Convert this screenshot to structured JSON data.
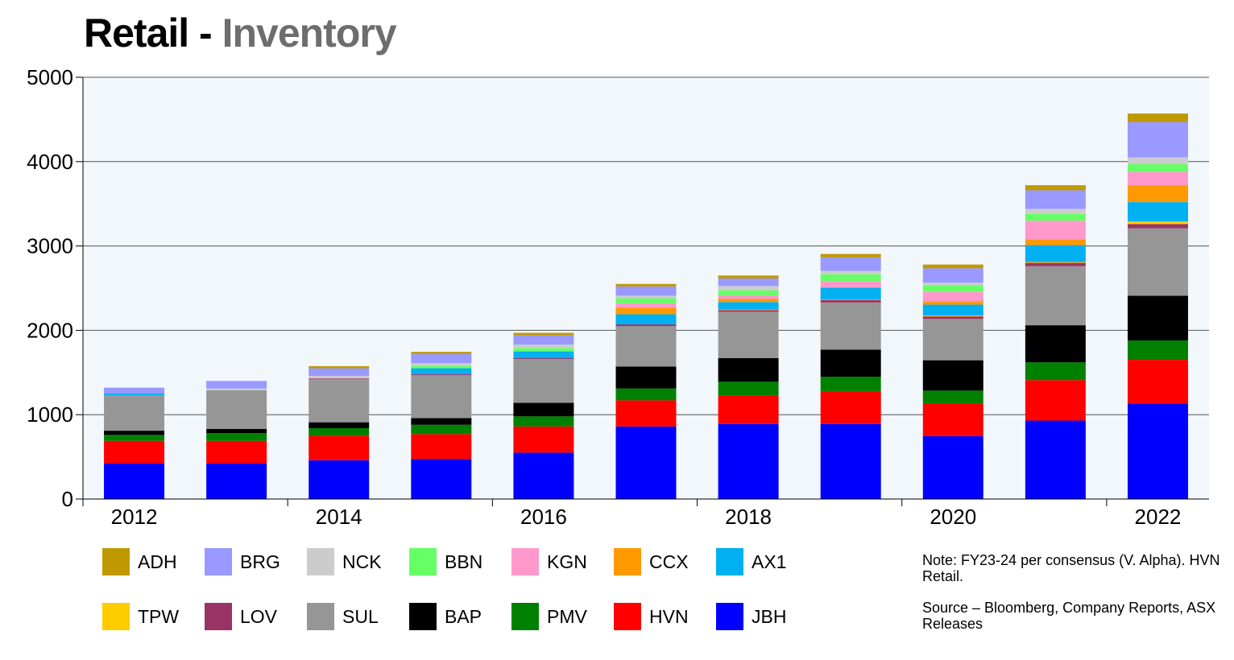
{
  "title_main": "Retail - ",
  "title_sub": "Inventory",
  "note_1": "Note: FY23-24 per consensus (V. Alpha). HVN Retail.",
  "note_2": "Source – Bloomberg, Company Reports, ASX Releases",
  "chart_data": {
    "type": "bar",
    "stacked": true,
    "title": "Retail - Inventory",
    "xlabel": "",
    "ylabel": "",
    "ylim": [
      0,
      5000
    ],
    "yticks": [
      0,
      1000,
      2000,
      3000,
      4000,
      5000
    ],
    "ytick_labels": [
      "0",
      "1000",
      "2000",
      "3000",
      "4000",
      "5000"
    ],
    "grid": true,
    "categories": [
      "2012",
      "2013",
      "2014",
      "2015",
      "2016",
      "2017",
      "2018",
      "2019",
      "2020",
      "2021",
      "2022"
    ],
    "xtick_labels": [
      "2012",
      "2014",
      "2016",
      "2018",
      "2020",
      "2022"
    ],
    "legend_position": "bottom",
    "series": [
      {
        "name": "JBH",
        "color": "#0000ff",
        "values": [
          420,
          420,
          460,
          475,
          550,
          860,
          890,
          890,
          745,
          930,
          1130
        ]
      },
      {
        "name": "HVN",
        "color": "#ff0000",
        "values": [
          270,
          270,
          290,
          295,
          310,
          310,
          340,
          390,
          390,
          480,
          520
        ]
      },
      {
        "name": "PMV",
        "color": "#008000",
        "values": [
          70,
          90,
          90,
          110,
          120,
          140,
          160,
          170,
          150,
          210,
          230
        ]
      },
      {
        "name": "BAP",
        "color": "#000000",
        "values": [
          50,
          50,
          70,
          80,
          160,
          260,
          280,
          320,
          360,
          440,
          530
        ]
      },
      {
        "name": "SUL",
        "color": "#969696",
        "values": [
          420,
          460,
          510,
          510,
          520,
          480,
          550,
          560,
          490,
          700,
          800
        ]
      },
      {
        "name": "LOV",
        "color": "#993366",
        "values": [
          0,
          0,
          10,
          10,
          10,
          20,
          20,
          30,
          30,
          40,
          50
        ]
      },
      {
        "name": "TPW",
        "color": "#ffcc00",
        "values": [
          0,
          0,
          0,
          0,
          0,
          0,
          5,
          5,
          10,
          10,
          30
        ]
      },
      {
        "name": "AX1",
        "color": "#00b0f0",
        "values": [
          20,
          0,
          0,
          70,
          80,
          120,
          90,
          140,
          130,
          200,
          230
        ]
      },
      {
        "name": "CCX",
        "color": "#ff9900",
        "values": [
          0,
          0,
          0,
          0,
          0,
          80,
          40,
          0,
          40,
          70,
          200
        ]
      },
      {
        "name": "KGN",
        "color": "#ff99cc",
        "values": [
          0,
          0,
          0,
          0,
          0,
          50,
          40,
          80,
          110,
          220,
          160
        ]
      },
      {
        "name": "BBN",
        "color": "#66ff66",
        "values": [
          0,
          0,
          0,
          30,
          40,
          60,
          60,
          80,
          80,
          80,
          90
        ]
      },
      {
        "name": "NCK",
        "color": "#cccccc",
        "values": [
          0,
          20,
          30,
          30,
          40,
          30,
          50,
          40,
          30,
          60,
          80
        ]
      },
      {
        "name": "BRG",
        "color": "#9999ff",
        "values": [
          70,
          90,
          90,
          110,
          110,
          110,
          90,
          160,
          170,
          220,
          420
        ]
      },
      {
        "name": "ADH",
        "color": "#bf9900",
        "values": [
          0,
          0,
          25,
          25,
          30,
          30,
          35,
          40,
          45,
          60,
          100
        ]
      }
    ],
    "legend_rows": [
      [
        "ADH",
        "BRG",
        "NCK",
        "BBN",
        "KGN",
        "CCX",
        "AX1"
      ],
      [
        "TPW",
        "LOV",
        "SUL",
        "BAP",
        "PMV",
        "HVN",
        "JBH"
      ]
    ]
  }
}
